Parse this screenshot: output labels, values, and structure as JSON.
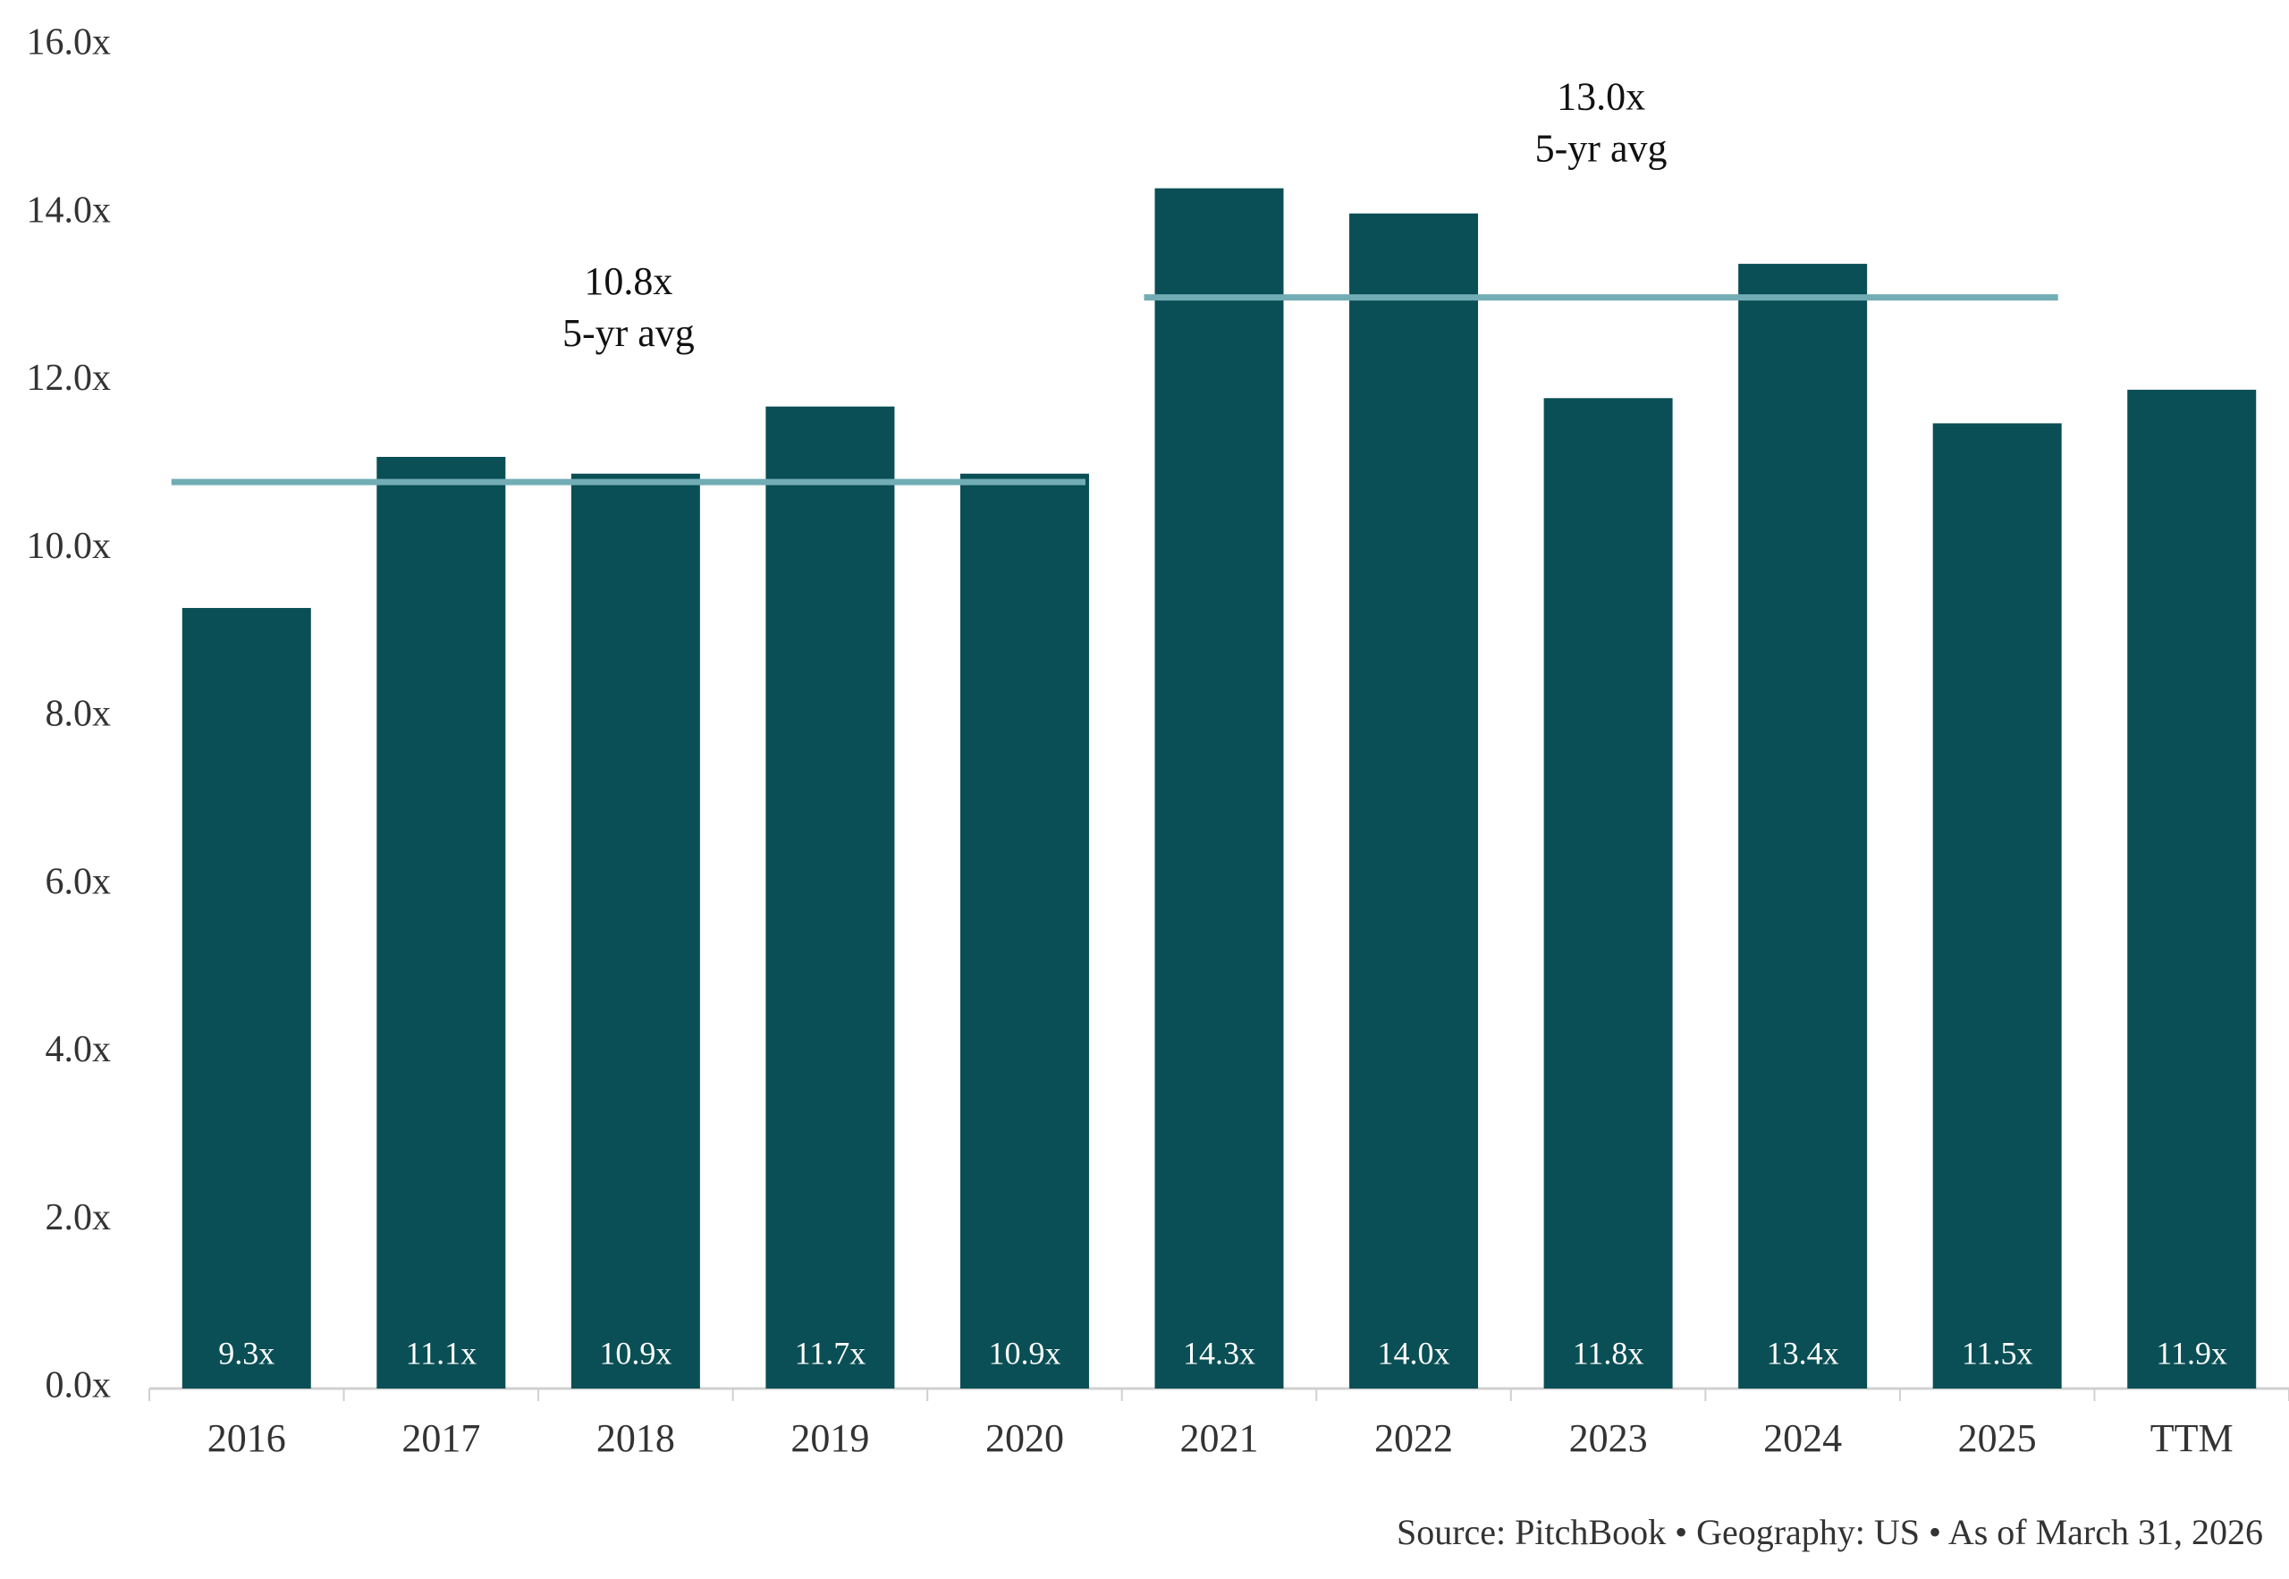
{
  "chart_data": {
    "type": "bar",
    "categories": [
      "2016",
      "2017",
      "2018",
      "2019",
      "2020",
      "2021",
      "2022",
      "2023",
      "2024",
      "2025",
      "TTM"
    ],
    "values": [
      9.3,
      11.1,
      10.9,
      11.7,
      10.9,
      14.3,
      14.0,
      11.8,
      13.4,
      11.5,
      11.9
    ],
    "value_labels": [
      "9.3x",
      "11.1x",
      "10.9x",
      "11.7x",
      "10.9x",
      "14.3x",
      "14.0x",
      "11.8x",
      "13.4x",
      "11.5x",
      "11.9x"
    ],
    "color": "#0a4f55",
    "ylim": [
      0,
      16
    ],
    "yticks": [
      {
        "value": 0,
        "label": "0.0x"
      },
      {
        "value": 2,
        "label": "2.0x"
      },
      {
        "value": 4,
        "label": "4.0x"
      },
      {
        "value": 6,
        "label": "6.0x"
      },
      {
        "value": 8,
        "label": "8.0x"
      },
      {
        "value": 10,
        "label": "10.0x"
      },
      {
        "value": 12,
        "label": "12.0x"
      },
      {
        "value": 14,
        "label": "14.0x"
      },
      {
        "value": 16,
        "label": "16.0x"
      }
    ],
    "grid": false,
    "reference_lines": [
      {
        "value": 10.8,
        "value_label": "10.8x",
        "label": "5-yr avg",
        "span": [
          "2016",
          "2020"
        ],
        "color": "#72adb5"
      },
      {
        "value": 13.0,
        "value_label": "13.0x",
        "label": "5-yr avg",
        "span": [
          "2021",
          "2025"
        ],
        "color": "#72adb5"
      }
    ],
    "source": "Source: PitchBook  •  Geography: US  •  As of March 31, 2026"
  }
}
